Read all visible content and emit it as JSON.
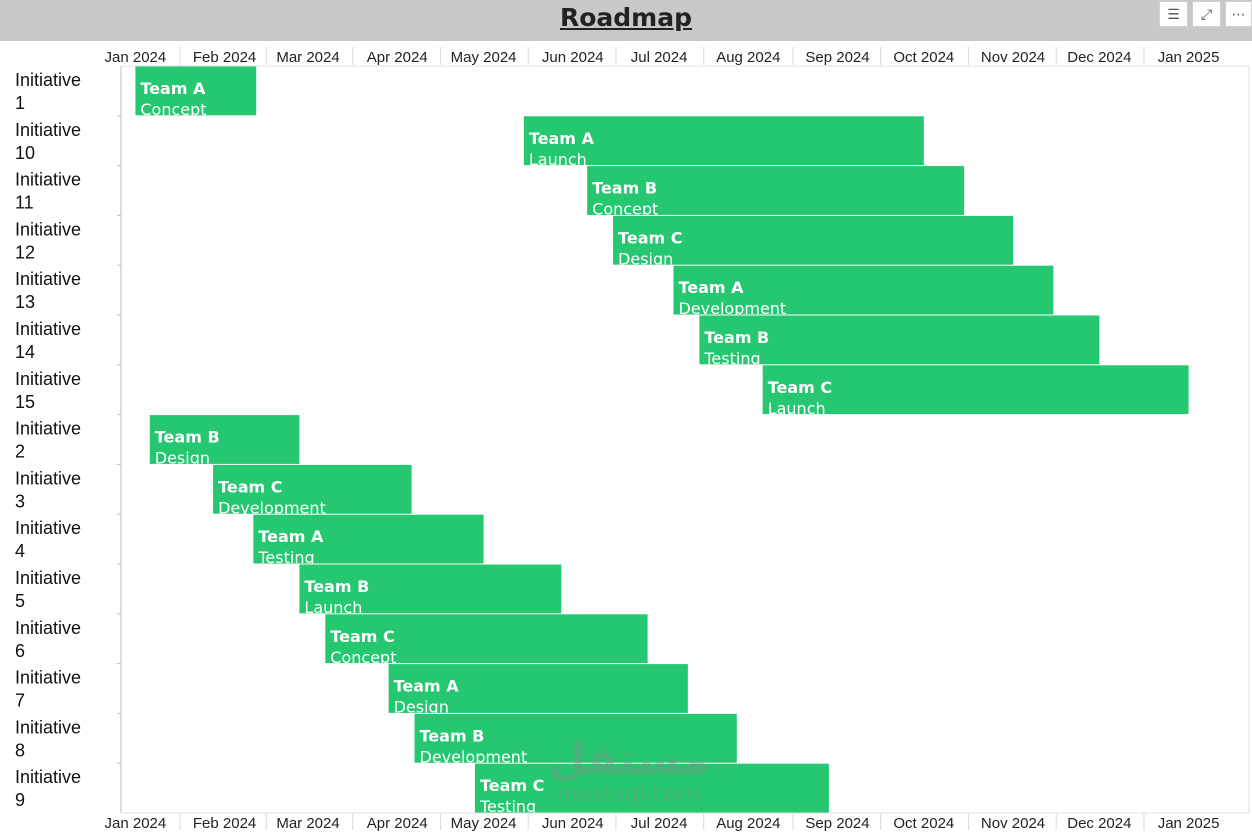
{
  "header": {
    "title": "Roadmap",
    "tools": [
      {
        "icon": "filter-icon",
        "glyph": "☰"
      },
      {
        "icon": "focus-mode-icon",
        "glyph": "⤢"
      },
      {
        "icon": "more-options-icon",
        "glyph": "⋯"
      }
    ]
  },
  "watermark": {
    "top": "مستقل",
    "bottom": "mostaql.com"
  },
  "colors": {
    "bar": "#25c771",
    "grid": "#e2e2e2",
    "header": "#c8c8c8"
  },
  "chart_data": {
    "type": "gantt",
    "title": "Roadmap",
    "x_ticks": [
      "2024-01-01",
      "2024-02-01",
      "2024-03-01",
      "2024-04-01",
      "2024-05-01",
      "2024-06-01",
      "2024-07-01",
      "2024-08-01",
      "2024-09-01",
      "2024-10-01",
      "2024-11-01",
      "2024-12-01",
      "2025-01-01"
    ],
    "x_tick_labels": [
      "Jan 2024",
      "Feb 2024",
      "Mar 2024",
      "Apr 2024",
      "May 2024",
      "Jun 2024",
      "Jul 2024",
      "Aug 2024",
      "Sep 2024",
      "Oct 2024",
      "Nov 2024",
      "Dec 2024",
      "Jan 2025"
    ],
    "xlim": [
      "2023-12-27",
      "2025-01-22"
    ],
    "tasks": [
      {
        "row": "Initiative 1",
        "team": "Team A",
        "phase": "Concept",
        "start": "2024-01-01",
        "end": "2024-02-12"
      },
      {
        "row": "Initiative 10",
        "team": "Team A",
        "phase": "Launch",
        "start": "2024-05-15",
        "end": "2024-10-01"
      },
      {
        "row": "Initiative 11",
        "team": "Team B",
        "phase": "Concept",
        "start": "2024-06-06",
        "end": "2024-10-15"
      },
      {
        "row": "Initiative 12",
        "team": "Team C",
        "phase": "Design",
        "start": "2024-06-15",
        "end": "2024-11-01"
      },
      {
        "row": "Initiative 13",
        "team": "Team A",
        "phase": "Development",
        "start": "2024-07-06",
        "end": "2024-11-15"
      },
      {
        "row": "Initiative 14",
        "team": "Team B",
        "phase": "Testing",
        "start": "2024-07-15",
        "end": "2024-12-01"
      },
      {
        "row": "Initiative 15",
        "team": "Team C",
        "phase": "Launch",
        "start": "2024-08-06",
        "end": "2025-01-01"
      },
      {
        "row": "Initiative 2",
        "team": "Team B",
        "phase": "Design",
        "start": "2024-01-06",
        "end": "2024-02-27"
      },
      {
        "row": "Initiative 3",
        "team": "Team C",
        "phase": "Development",
        "start": "2024-01-28",
        "end": "2024-04-06"
      },
      {
        "row": "Initiative 4",
        "team": "Team A",
        "phase": "Testing",
        "start": "2024-02-11",
        "end": "2024-05-01"
      },
      {
        "row": "Initiative 5",
        "team": "Team B",
        "phase": "Launch",
        "start": "2024-02-27",
        "end": "2024-05-28"
      },
      {
        "row": "Initiative 6",
        "team": "Team C",
        "phase": "Concept",
        "start": "2024-03-07",
        "end": "2024-06-27"
      },
      {
        "row": "Initiative 7",
        "team": "Team A",
        "phase": "Design",
        "start": "2024-03-29",
        "end": "2024-07-11"
      },
      {
        "row": "Initiative 8",
        "team": "Team B",
        "phase": "Development",
        "start": "2024-04-07",
        "end": "2024-07-28"
      },
      {
        "row": "Initiative 9",
        "team": "Team C",
        "phase": "Testing",
        "start": "2024-04-28",
        "end": "2024-08-29"
      }
    ]
  }
}
